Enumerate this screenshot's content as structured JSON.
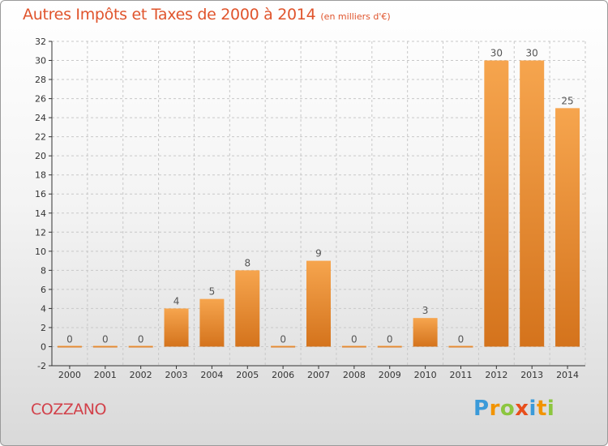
{
  "header": {
    "title": "Autres Impôts et Taxes de 2000 à 2014",
    "subtitle": "(en milliers d'€)"
  },
  "footer": {
    "commune": "COZZANO",
    "logo_letters": [
      "P",
      "r",
      "o",
      "x",
      "i",
      "t",
      "i"
    ]
  },
  "colors": {
    "bar_light": "#f6a54e",
    "bar_dark": "#d4731c",
    "title": "#e0542c",
    "commune": "#d2414a",
    "logo": [
      "#3a9ad9",
      "#f29400",
      "#8cc63f",
      "#e84e1b",
      "#3a9ad9",
      "#f29400",
      "#8cc63f"
    ]
  },
  "chart_data": {
    "type": "bar",
    "title": "Autres Impôts et Taxes de 2000 à 2014",
    "subtitle": "(en milliers d'€)",
    "categories": [
      "2000",
      "2001",
      "2002",
      "2003",
      "2004",
      "2005",
      "2006",
      "2007",
      "2008",
      "2009",
      "2010",
      "2011",
      "2012",
      "2013",
      "2014"
    ],
    "values": [
      0,
      0,
      0,
      4,
      5,
      8,
      0,
      9,
      0,
      0,
      3,
      0,
      30,
      30,
      25
    ],
    "ylim": [
      -2,
      32
    ],
    "yticks": [
      -2,
      0,
      2,
      4,
      6,
      8,
      10,
      12,
      14,
      16,
      18,
      20,
      22,
      24,
      26,
      28,
      30,
      32
    ],
    "grid": true,
    "xlabel": "",
    "ylabel": ""
  }
}
